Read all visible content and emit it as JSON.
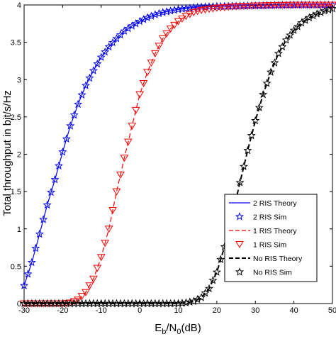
{
  "chart_data": {
    "type": "line",
    "title": "",
    "xlabel": "E_b/N_0(dB)",
    "xlabel_parts": {
      "main": "E",
      "sub1": "b",
      "mid": "/N",
      "sub2": "0",
      "tail": "(dB)"
    },
    "ylabel": "Total throughput in bit/s/Hz",
    "xlim": [
      -30,
      50
    ],
    "ylim": [
      0,
      4
    ],
    "xticks": [
      -30,
      -20,
      -10,
      0,
      10,
      20,
      30,
      40,
      50
    ],
    "xtick_labels": [
      "-30",
      "-20",
      "-10",
      "0",
      "10",
      "20",
      "30",
      "40",
      "50"
    ],
    "yticks": [
      0,
      0.5,
      1,
      1.5,
      2,
      2.5,
      3,
      3.5,
      4
    ],
    "ytick_labels": [
      "0",
      "0.5",
      "1",
      "1.5",
      "2",
      "2.5",
      "3",
      "3.5",
      "4"
    ],
    "grid": false,
    "legend_position": "bottom-right",
    "series": [
      {
        "name": "2 RIS Theory",
        "style": "solid",
        "marker": "none",
        "color": "#0000ff",
        "x": [
          -30,
          -28,
          -26,
          -24,
          -22,
          -20,
          -18,
          -16,
          -14,
          -12,
          -10,
          -8,
          -6,
          -4,
          -2,
          0,
          2,
          4,
          6,
          8,
          10,
          15,
          20,
          30,
          40,
          50
        ],
        "y": [
          0.24,
          0.55,
          0.93,
          1.32,
          1.66,
          2.03,
          2.38,
          2.67,
          2.92,
          3.12,
          3.3,
          3.44,
          3.55,
          3.65,
          3.72,
          3.78,
          3.83,
          3.87,
          3.9,
          3.92,
          3.94,
          3.97,
          3.98,
          3.99,
          4.0,
          4.0
        ]
      },
      {
        "name": "2 RIS Sim",
        "style": "none",
        "marker": "star",
        "color": "#0000ff",
        "x": [
          -30,
          -28,
          -26,
          -24,
          -22,
          -20,
          -18,
          -16,
          -14,
          -12,
          -10,
          -8,
          -6,
          -4,
          -2,
          0,
          2,
          4,
          6,
          8,
          10,
          15,
          20,
          30,
          40,
          50
        ],
        "y": [
          0.24,
          0.55,
          0.93,
          1.32,
          1.66,
          2.03,
          2.38,
          2.67,
          2.92,
          3.12,
          3.3,
          3.44,
          3.55,
          3.65,
          3.72,
          3.78,
          3.83,
          3.87,
          3.9,
          3.92,
          3.94,
          3.97,
          3.98,
          3.99,
          4.0,
          4.0
        ]
      },
      {
        "name": "1 RIS Theory",
        "style": "dashed",
        "marker": "none",
        "color": "#ff0000",
        "x": [
          -30,
          -20,
          -18,
          -16,
          -14,
          -12,
          -10,
          -8,
          -6,
          -4,
          -2,
          0,
          2,
          4,
          6,
          8,
          10,
          12,
          14,
          16,
          20,
          25,
          30,
          40,
          50
        ],
        "y": [
          0.0,
          0.0,
          0.01,
          0.05,
          0.15,
          0.33,
          0.62,
          1.0,
          1.5,
          1.95,
          2.38,
          2.8,
          3.1,
          3.35,
          3.55,
          3.68,
          3.78,
          3.85,
          3.9,
          3.93,
          3.96,
          3.98,
          3.99,
          4.0,
          4.0
        ]
      },
      {
        "name": "1 RIS Sim",
        "style": "none",
        "marker": "triangle-down",
        "color": "#ff0000",
        "x": [
          -30,
          -20,
          -18,
          -16,
          -14,
          -12,
          -10,
          -8,
          -6,
          -4,
          -2,
          0,
          2,
          4,
          6,
          8,
          10,
          12,
          14,
          16,
          20,
          25,
          30,
          40,
          50
        ],
        "y": [
          0.0,
          0.0,
          0.01,
          0.05,
          0.15,
          0.33,
          0.62,
          1.0,
          1.5,
          1.95,
          2.38,
          2.8,
          3.1,
          3.35,
          3.55,
          3.68,
          3.78,
          3.85,
          3.9,
          3.93,
          3.96,
          3.98,
          3.99,
          4.0,
          4.0
        ]
      },
      {
        "name": "No RIS Theory",
        "style": "dashed",
        "marker": "none",
        "color": "#000000",
        "x": [
          -30,
          10,
          12,
          14,
          16,
          18,
          20,
          22,
          24,
          26,
          28,
          30,
          32,
          34,
          36,
          38,
          40,
          42,
          44,
          46,
          48,
          50
        ],
        "y": [
          0.0,
          0.0,
          0.01,
          0.03,
          0.08,
          0.2,
          0.42,
          0.76,
          1.18,
          1.62,
          2.05,
          2.45,
          2.8,
          3.1,
          3.35,
          3.53,
          3.66,
          3.76,
          3.83,
          3.88,
          3.92,
          3.95
        ]
      },
      {
        "name": "No RIS Sim",
        "style": "none",
        "marker": "star",
        "color": "#000000",
        "x": [
          -30,
          10,
          12,
          14,
          16,
          18,
          20,
          22,
          24,
          26,
          28,
          30,
          32,
          34,
          36,
          38,
          40,
          42,
          44,
          46,
          48,
          50
        ],
        "y": [
          0.0,
          0.0,
          0.01,
          0.03,
          0.08,
          0.2,
          0.42,
          0.76,
          1.18,
          1.62,
          2.05,
          2.45,
          2.8,
          3.1,
          3.35,
          3.53,
          3.66,
          3.76,
          3.83,
          3.88,
          3.92,
          3.95
        ]
      }
    ]
  }
}
